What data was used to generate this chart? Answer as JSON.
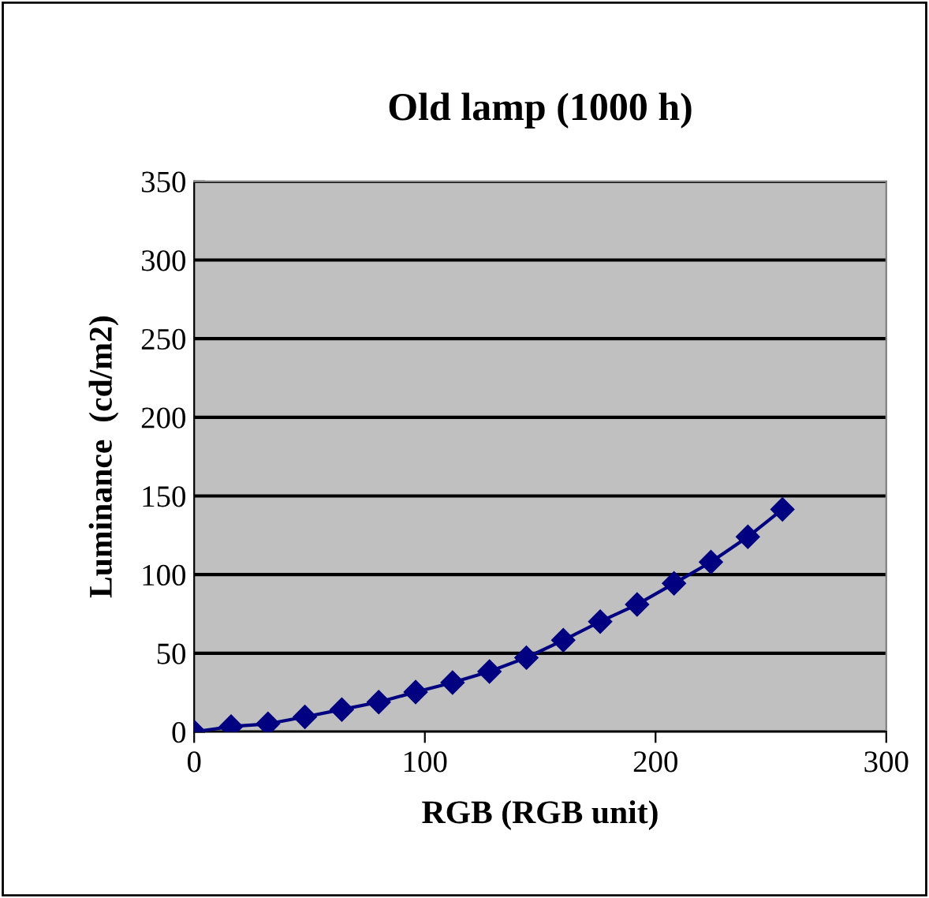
{
  "chart_data": {
    "type": "line",
    "title": "Old lamp (1000 h)",
    "xlabel": "RGB (RGB unit)",
    "ylabel": "Luminance  (cd/m2)",
    "x": [
      0,
      16,
      32,
      48,
      64,
      80,
      96,
      112,
      128,
      144,
      160,
      176,
      192,
      208,
      224,
      240,
      255
    ],
    "series": [
      {
        "color": "#000080",
        "values": [
          0,
          3.4,
          5.1,
          9.5,
          14.2,
          18.9,
          25.3,
          31.3,
          38.4,
          47.2,
          58.3,
          70.1,
          81,
          94.4,
          108,
          124,
          141.5
        ]
      }
    ],
    "xlim": [
      0,
      300
    ],
    "xticks": [
      0,
      100,
      200,
      300
    ],
    "ylim": [
      0,
      350
    ],
    "yticks": [
      0,
      50,
      100,
      150,
      200,
      250,
      300,
      350
    ],
    "grid": "y",
    "marker": "diamond",
    "line_style": "solid"
  }
}
